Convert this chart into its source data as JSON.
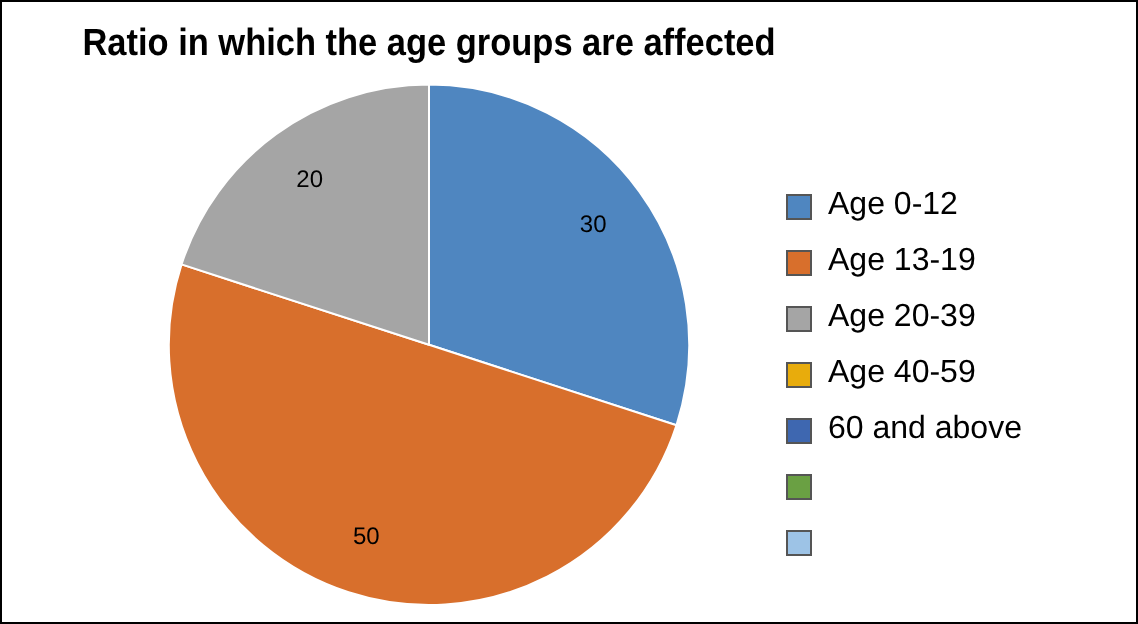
{
  "chart_data": {
    "type": "pie",
    "title": "Ratio in which the age groups are affected",
    "categories": [
      "Age 0-12",
      "Age 13-19",
      "Age 20-39",
      "Age 40-59",
      "60 and above",
      null,
      null
    ],
    "values": [
      30,
      50,
      20,
      null,
      null,
      null,
      null
    ],
    "colors": [
      "#4f86c0",
      "#d86f2c",
      "#a5a5a5",
      "#e8ac0c",
      "#3e67b0",
      "#6aa043",
      "#9dc3e6"
    ],
    "data_labels": true,
    "legend": "right"
  }
}
